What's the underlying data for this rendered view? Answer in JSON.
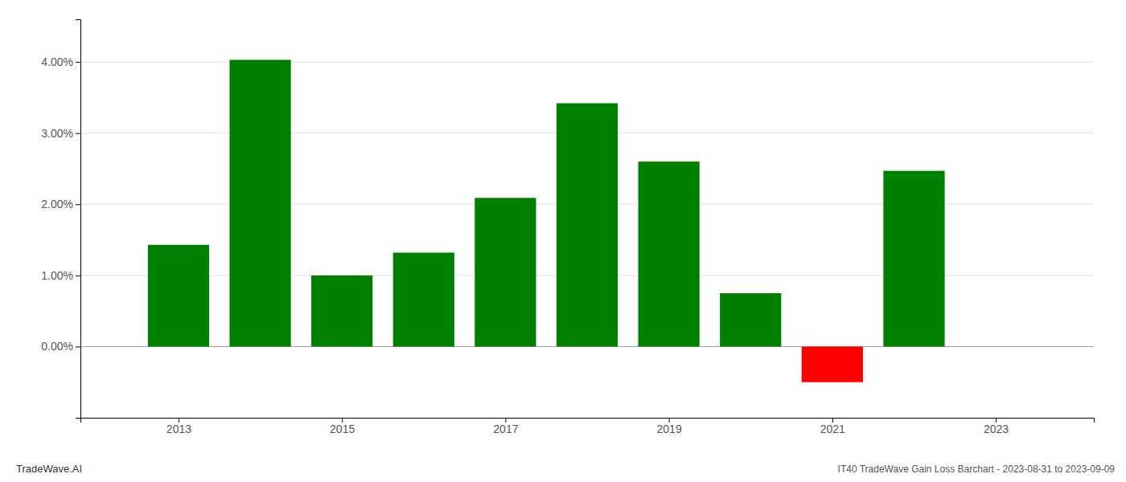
{
  "chart_data": {
    "type": "bar",
    "x": [
      2013,
      2014,
      2015,
      2016,
      2017,
      2018,
      2019,
      2020,
      2021,
      2022
    ],
    "values": [
      0.0143,
      0.0403,
      0.01,
      0.0132,
      0.0209,
      0.0342,
      0.026,
      0.0075,
      -0.005,
      0.0247
    ],
    "colors": [
      "#008000",
      "#008000",
      "#008000",
      "#008000",
      "#008000",
      "#008000",
      "#008000",
      "#008000",
      "#ff0000",
      "#008000"
    ],
    "xlim": [
      2011.8,
      2024.2
    ],
    "xticks": [
      2013,
      2015,
      2017,
      2019,
      2021,
      2023
    ],
    "ylim": [
      -0.01,
      0.046
    ],
    "yticks": [
      {
        "value": 0.0,
        "label": "0.00%"
      },
      {
        "value": 0.01,
        "label": "1.00%"
      },
      {
        "value": 0.02,
        "label": "2.00%"
      },
      {
        "value": 0.03,
        "label": "3.00%"
      },
      {
        "value": 0.04,
        "label": "4.00%"
      }
    ],
    "grid": true,
    "annotations": [
      "TradeWave.AI",
      "IT40 TradeWave Gain Loss Barchart - 2023-08-31 to 2023-09-09"
    ]
  }
}
